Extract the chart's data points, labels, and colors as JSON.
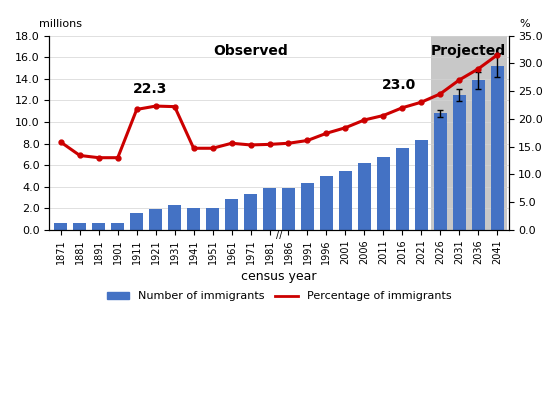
{
  "bar_years": [
    "1871",
    "1881",
    "1891",
    "1901",
    "1911",
    "1921",
    "1931",
    "1941",
    "1951",
    "1961",
    "1971",
    "1981",
    "1986",
    "1991",
    "1996",
    "2001",
    "2006",
    "2011",
    "2016",
    "2021"
  ],
  "bar_values": [
    0.59,
    0.64,
    0.6,
    0.68,
    1.59,
    1.96,
    2.31,
    1.98,
    2.06,
    2.84,
    3.3,
    3.84,
    3.91,
    4.34,
    4.97,
    5.45,
    6.19,
    6.78,
    7.54,
    8.35
  ],
  "proj_years": [
    "2026",
    "2031",
    "2036",
    "2041"
  ],
  "proj_values": [
    10.8,
    12.47,
    13.87,
    15.22
  ],
  "proj_yerr_low": [
    0.3,
    0.55,
    0.8,
    1.05
  ],
  "proj_yerr_high": [
    0.3,
    0.55,
    0.8,
    1.05
  ],
  "line_years": [
    "1871",
    "1881",
    "1891",
    "1901",
    "1911",
    "1921",
    "1931",
    "1941",
    "1951",
    "1961",
    "1971",
    "1981",
    "1986",
    "1991",
    "1996",
    "2001",
    "2006",
    "2011",
    "2016",
    "2021",
    "2026",
    "2031",
    "2036",
    "2041"
  ],
  "line_values": [
    15.8,
    13.4,
    13.0,
    13.0,
    21.7,
    22.3,
    22.2,
    14.7,
    14.7,
    15.6,
    15.3,
    15.4,
    15.6,
    16.1,
    17.4,
    18.4,
    19.8,
    20.6,
    22.0,
    23.0,
    24.5,
    27.0,
    29.0,
    31.5
  ],
  "annotation_1_text": "22.3",
  "annotation_1_year": "1921",
  "annotation_1_pct": 22.3,
  "annotation_2_text": "23.0",
  "annotation_2_year": "2021",
  "annotation_2_pct": 23.0,
  "bar_color": "#4472C4",
  "proj_bar_color": "#4472C4",
  "line_color": "#CC0000",
  "proj_shade_color": "#C8C8C8",
  "background_color": "#ffffff",
  "ylabel_left": "millions",
  "ylabel_right": "%",
  "xlabel": "census year",
  "ylim_left": [
    0,
    18.0
  ],
  "ylim_right": [
    0,
    35.0
  ],
  "yticks_left": [
    0.0,
    2.0,
    4.0,
    6.0,
    8.0,
    10.0,
    12.0,
    14.0,
    16.0,
    18.0
  ],
  "yticks_right": [
    0.0,
    5.0,
    10.0,
    15.0,
    20.0,
    25.0,
    30.0,
    35.0
  ],
  "observed_label": "Observed",
  "projected_label": "Projected",
  "legend_bar_label": "Number of immigrants",
  "legend_line_label": "Percentage of immigrants"
}
